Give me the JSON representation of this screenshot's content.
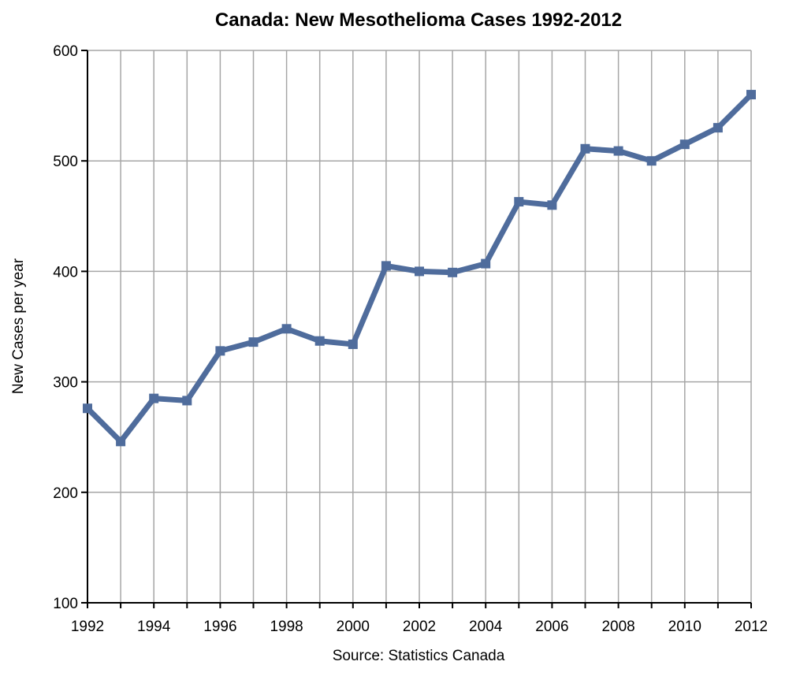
{
  "chart_data": {
    "type": "line",
    "title": "Canada:  New Mesothelioma Cases 1992-2012",
    "xlabel": "",
    "ylabel": "New Cases per year",
    "source": "Source:  Statistics Canada",
    "x": [
      1992,
      1993,
      1994,
      1995,
      1996,
      1997,
      1998,
      1999,
      2000,
      2001,
      2002,
      2003,
      2004,
      2005,
      2006,
      2007,
      2008,
      2009,
      2010,
      2011,
      2012
    ],
    "x_tick_labels": [
      "1992",
      "1994",
      "1996",
      "1998",
      "2000",
      "2002",
      "2004",
      "2006",
      "2008",
      "2010",
      "2012"
    ],
    "y_ticks": [
      100,
      200,
      300,
      400,
      500,
      600
    ],
    "y_tick_labels": [
      "100",
      "200",
      "300",
      "400",
      "500",
      "600"
    ],
    "xlim": [
      1992,
      2012
    ],
    "ylim": [
      100,
      600
    ],
    "grid": true,
    "series": [
      {
        "name": "New Mesothelioma Cases",
        "color": "#4f6c9c",
        "values": [
          276,
          246,
          285,
          283,
          328,
          336,
          348,
          337,
          334,
          405,
          400,
          399,
          407,
          463,
          460,
          511,
          509,
          500,
          515,
          530,
          560
        ]
      }
    ]
  }
}
